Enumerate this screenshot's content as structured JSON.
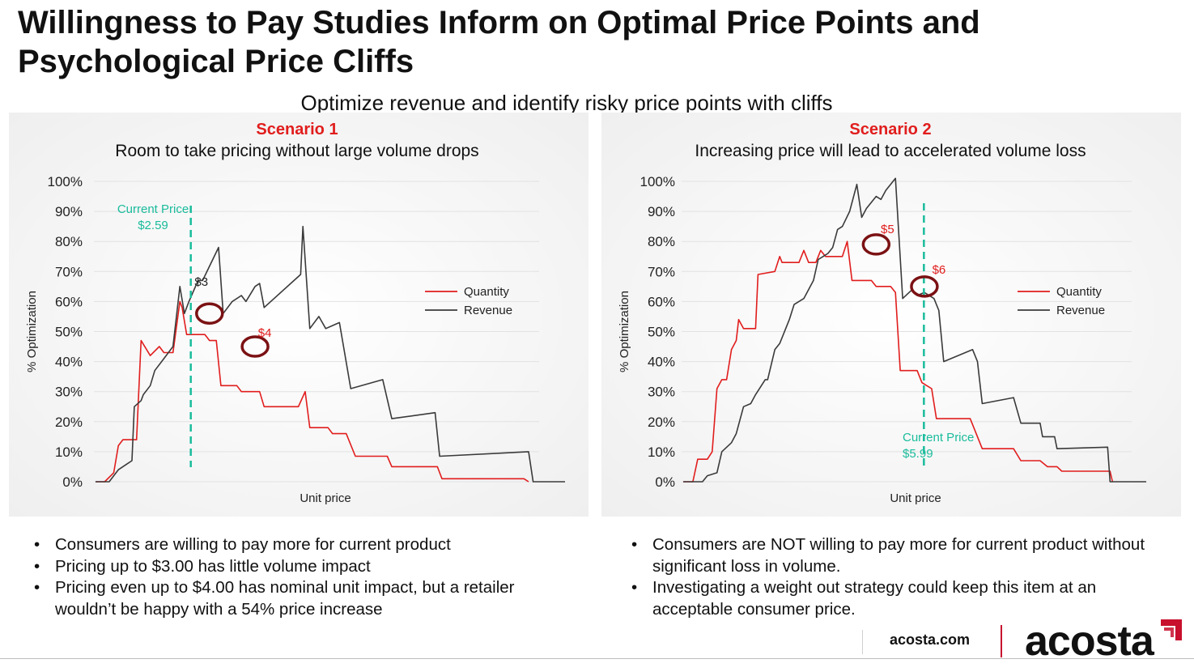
{
  "title": "Willingness to Pay Studies Inform on Optimal Price Points and Psychological Price Cliffs",
  "subtitle": "Optimize revenue and identify risky price points with cliffs",
  "colors": {
    "quantity": "#e11d1d",
    "revenue": "#3a3a3a",
    "current_price": "#1abc9c",
    "circle": "#7b1113",
    "scenario": "#e11d1d"
  },
  "chart_data": [
    {
      "type": "line",
      "scenario_label": "Scenario 1",
      "title": "Room to take pricing without large volume drops",
      "xlabel": "Unit price",
      "ylabel": "% Optimization",
      "ylim": [
        0,
        100
      ],
      "yticks": [
        "0%",
        "10%",
        "20%",
        "30%",
        "40%",
        "50%",
        "60%",
        "70%",
        "80%",
        "90%",
        "100%"
      ],
      "legend": [
        "Quantity",
        "Revenue"
      ],
      "legend_position": "right",
      "grid": true,
      "current_price": {
        "label": "Current Price",
        "value_label": "$2.59",
        "x": 2.59
      },
      "annotations": [
        {
          "label": "$3",
          "x": 3.0,
          "y": 56,
          "series": "Revenue"
        },
        {
          "label": "$4",
          "x": 4.0,
          "y": 45,
          "series": "Quantity"
        }
      ],
      "series": [
        {
          "name": "Quantity",
          "color": "#e11d1d",
          "points": [
            [
              0.5,
              0
            ],
            [
              0.7,
              0
            ],
            [
              0.9,
              3
            ],
            [
              1.0,
              12
            ],
            [
              1.1,
              14
            ],
            [
              1.4,
              14
            ],
            [
              1.5,
              47
            ],
            [
              1.7,
              42
            ],
            [
              1.9,
              45
            ],
            [
              2.0,
              43
            ],
            [
              2.2,
              43
            ],
            [
              2.35,
              60
            ],
            [
              2.4,
              58
            ],
            [
              2.5,
              49
            ],
            [
              2.9,
              49
            ],
            [
              3.0,
              47
            ],
            [
              3.15,
              47
            ],
            [
              3.25,
              32
            ],
            [
              3.6,
              32
            ],
            [
              3.7,
              30
            ],
            [
              4.1,
              30
            ],
            [
              4.2,
              25
            ],
            [
              4.95,
              25
            ],
            [
              5.1,
              30
            ],
            [
              5.2,
              18
            ],
            [
              5.6,
              18
            ],
            [
              5.7,
              16
            ],
            [
              6.0,
              16
            ],
            [
              6.2,
              8.5
            ],
            [
              6.9,
              8.5
            ],
            [
              7.0,
              5
            ],
            [
              8.0,
              5
            ],
            [
              8.1,
              1
            ],
            [
              9.9,
              1
            ],
            [
              10.0,
              0
            ]
          ]
        },
        {
          "name": "Revenue",
          "color": "#3a3a3a",
          "points": [
            [
              0.5,
              0
            ],
            [
              0.8,
              0
            ],
            [
              0.9,
              2
            ],
            [
              1.0,
              4
            ],
            [
              1.2,
              6
            ],
            [
              1.3,
              7
            ],
            [
              1.35,
              25
            ],
            [
              1.5,
              27
            ],
            [
              1.55,
              29
            ],
            [
              1.7,
              32
            ],
            [
              1.8,
              37
            ],
            [
              2.0,
              41
            ],
            [
              2.2,
              45
            ],
            [
              2.35,
              65
            ],
            [
              2.45,
              56
            ],
            [
              2.55,
              60
            ],
            [
              2.75,
              67
            ],
            [
              2.85,
              67
            ],
            [
              3.2,
              78
            ],
            [
              3.3,
              56
            ],
            [
              3.5,
              60
            ],
            [
              3.7,
              62
            ],
            [
              3.8,
              60
            ],
            [
              4.0,
              65
            ],
            [
              4.1,
              66
            ],
            [
              4.2,
              58
            ],
            [
              5.0,
              69
            ],
            [
              5.05,
              85
            ],
            [
              5.2,
              51
            ],
            [
              5.4,
              55
            ],
            [
              5.55,
              51
            ],
            [
              5.7,
              52
            ],
            [
              5.85,
              53
            ],
            [
              6.1,
              31
            ],
            [
              6.8,
              34
            ],
            [
              7.0,
              21
            ],
            [
              7.95,
              23
            ],
            [
              8.05,
              8.5
            ],
            [
              10.0,
              10
            ],
            [
              10.1,
              0
            ],
            [
              10.8,
              0
            ]
          ]
        }
      ]
    },
    {
      "type": "line",
      "scenario_label": "Scenario 2",
      "title": "Increasing price will lead to accelerated volume loss",
      "xlabel": "Unit price",
      "ylabel": "% Optimization",
      "ylim": [
        0,
        100
      ],
      "yticks": [
        "0%",
        "10%",
        "20%",
        "30%",
        "40%",
        "50%",
        "60%",
        "70%",
        "80%",
        "90%",
        "100%"
      ],
      "legend": [
        "Quantity",
        "Revenue"
      ],
      "legend_position": "right",
      "grid": true,
      "current_price": {
        "label": "Current Price",
        "value_label": "$5.99",
        "x": 5.99
      },
      "annotations": [
        {
          "label": "$5",
          "x": 5.0,
          "y": 79,
          "series": "Quantity"
        },
        {
          "label": "$6",
          "x": 6.0,
          "y": 65,
          "series": "Quantity"
        }
      ],
      "series": [
        {
          "name": "Quantity",
          "color": "#e11d1d",
          "points": [
            [
              1.0,
              0
            ],
            [
              1.2,
              0
            ],
            [
              1.3,
              7.5
            ],
            [
              1.5,
              7.5
            ],
            [
              1.6,
              10
            ],
            [
              1.7,
              31
            ],
            [
              1.8,
              34
            ],
            [
              1.9,
              34
            ],
            [
              2.0,
              44
            ],
            [
              2.1,
              47
            ],
            [
              2.15,
              54
            ],
            [
              2.25,
              51
            ],
            [
              2.5,
              51
            ],
            [
              2.55,
              69
            ],
            [
              2.9,
              70
            ],
            [
              3.0,
              75
            ],
            [
              3.05,
              73
            ],
            [
              3.4,
              73
            ],
            [
              3.5,
              77
            ],
            [
              3.6,
              73
            ],
            [
              3.75,
              73
            ],
            [
              3.85,
              77
            ],
            [
              3.95,
              75
            ],
            [
              4.3,
              75
            ],
            [
              4.4,
              80
            ],
            [
              4.5,
              67
            ],
            [
              4.9,
              67
            ],
            [
              5.0,
              65
            ],
            [
              5.3,
              65
            ],
            [
              5.4,
              63
            ],
            [
              5.5,
              37
            ],
            [
              5.85,
              37
            ],
            [
              5.95,
              33
            ],
            [
              6.15,
              31
            ],
            [
              6.25,
              21
            ],
            [
              6.95,
              21
            ],
            [
              7.05,
              17
            ],
            [
              7.2,
              11
            ],
            [
              7.85,
              11
            ],
            [
              8.0,
              7
            ],
            [
              8.4,
              7
            ],
            [
              8.55,
              5
            ],
            [
              8.75,
              5
            ],
            [
              8.85,
              3.5
            ],
            [
              9.85,
              3.5
            ],
            [
              9.9,
              0
            ]
          ]
        },
        {
          "name": "Revenue",
          "color": "#3a3a3a",
          "points": [
            [
              1.0,
              0
            ],
            [
              1.4,
              0
            ],
            [
              1.5,
              2
            ],
            [
              1.7,
              3
            ],
            [
              1.8,
              10
            ],
            [
              2.0,
              13
            ],
            [
              2.1,
              16
            ],
            [
              2.25,
              25
            ],
            [
              2.4,
              26
            ],
            [
              2.5,
              29
            ],
            [
              2.7,
              34
            ],
            [
              2.75,
              34
            ],
            [
              2.9,
              44
            ],
            [
              3.0,
              46
            ],
            [
              3.2,
              54
            ],
            [
              3.3,
              59
            ],
            [
              3.5,
              61
            ],
            [
              3.7,
              67
            ],
            [
              3.8,
              74
            ],
            [
              3.9,
              75
            ],
            [
              4.0,
              76
            ],
            [
              4.1,
              78
            ],
            [
              4.2,
              84
            ],
            [
              4.3,
              85
            ],
            [
              4.45,
              90
            ],
            [
              4.6,
              99
            ],
            [
              4.7,
              88
            ],
            [
              4.8,
              91
            ],
            [
              5.0,
              95
            ],
            [
              5.1,
              94
            ],
            [
              5.2,
              97
            ],
            [
              5.4,
              101
            ],
            [
              5.55,
              61
            ],
            [
              5.75,
              64
            ],
            [
              5.85,
              62
            ],
            [
              6.0,
              63
            ],
            [
              6.2,
              61
            ],
            [
              6.3,
              57
            ],
            [
              6.4,
              40
            ],
            [
              7.0,
              44
            ],
            [
              7.1,
              40
            ],
            [
              7.2,
              26
            ],
            [
              7.85,
              28
            ],
            [
              8.0,
              19.5
            ],
            [
              8.4,
              19.5
            ],
            [
              8.45,
              15
            ],
            [
              8.7,
              15
            ],
            [
              8.75,
              11
            ],
            [
              9.8,
              11.5
            ],
            [
              9.85,
              0
            ],
            [
              10.6,
              0
            ]
          ]
        }
      ]
    }
  ],
  "bullets": {
    "left": [
      "Consumers are willing to pay more for current product",
      "Pricing up to $3.00 has little volume impact",
      "Pricing even up to $4.00 has nominal unit impact, but a retailer wouldn’t be happy with a 54% price increase"
    ],
    "right": [
      "Consumers are NOT willing to pay more for current product without significant loss in volume.",
      "Investigating a weight out strategy could keep this item at an acceptable consumer price."
    ]
  },
  "footer": {
    "site": "acosta.com",
    "logo": "acosta"
  }
}
